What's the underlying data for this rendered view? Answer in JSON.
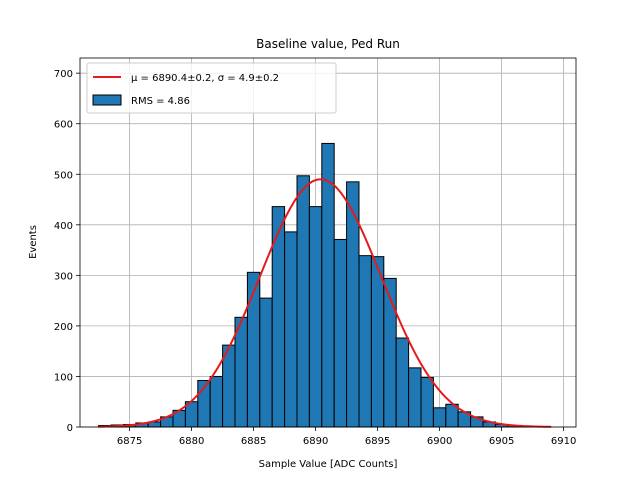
{
  "chart_data": {
    "type": "bar",
    "title": "Baseline value, Ped Run",
    "xlabel": "Sample Value [ADC Counts]",
    "ylabel": "Events",
    "xlim": [
      6871,
      6911
    ],
    "ylim": [
      0,
      730
    ],
    "xticks": [
      6875,
      6880,
      6885,
      6890,
      6895,
      6900,
      6905,
      6910
    ],
    "yticks": [
      0,
      100,
      200,
      300,
      400,
      500,
      600,
      700
    ],
    "grid": true,
    "legend_placement": "top-left",
    "bar_color": "#1f77b4",
    "bar_edge_color": "#000000",
    "fit_color": "#e41a1c",
    "series": [
      {
        "name": "RMS = 4.86",
        "kind": "histogram",
        "bins": [
          {
            "x0": 6872.5,
            "x1": 6873.5,
            "count": 3
          },
          {
            "x0": 6873.5,
            "x1": 6874.5,
            "count": 4
          },
          {
            "x0": 6874.5,
            "x1": 6875.5,
            "count": 5
          },
          {
            "x0": 6875.5,
            "x1": 6876.5,
            "count": 8
          },
          {
            "x0": 6876.5,
            "x1": 6877.5,
            "count": 10
          },
          {
            "x0": 6877.5,
            "x1": 6878.5,
            "count": 20
          },
          {
            "x0": 6878.5,
            "x1": 6879.5,
            "count": 33
          },
          {
            "x0": 6879.5,
            "x1": 6880.5,
            "count": 50
          },
          {
            "x0": 6880.5,
            "x1": 6881.5,
            "count": 92
          },
          {
            "x0": 6881.5,
            "x1": 6882.5,
            "count": 100
          },
          {
            "x0": 6882.5,
            "x1": 6883.5,
            "count": 162
          },
          {
            "x0": 6883.5,
            "x1": 6884.5,
            "count": 217
          },
          {
            "x0": 6884.5,
            "x1": 6885.5,
            "count": 306
          },
          {
            "x0": 6885.5,
            "x1": 6886.5,
            "count": 255
          },
          {
            "x0": 6886.5,
            "x1": 6887.5,
            "count": 436
          },
          {
            "x0": 6887.5,
            "x1": 6888.5,
            "count": 386
          },
          {
            "x0": 6888.5,
            "x1": 6889.5,
            "count": 497
          },
          {
            "x0": 6889.5,
            "x1": 6890.5,
            "count": 436
          },
          {
            "x0": 6890.5,
            "x1": 6891.5,
            "count": 561
          },
          {
            "x0": 6891.5,
            "x1": 6892.5,
            "count": 371
          },
          {
            "x0": 6892.5,
            "x1": 6893.5,
            "count": 485
          },
          {
            "x0": 6893.5,
            "x1": 6894.5,
            "count": 339
          },
          {
            "x0": 6894.5,
            "x1": 6895.5,
            "count": 337
          },
          {
            "x0": 6895.5,
            "x1": 6896.5,
            "count": 294
          },
          {
            "x0": 6896.5,
            "x1": 6897.5,
            "count": 176
          },
          {
            "x0": 6897.5,
            "x1": 6898.5,
            "count": 117
          },
          {
            "x0": 6898.5,
            "x1": 6899.5,
            "count": 98
          },
          {
            "x0": 6899.5,
            "x1": 6900.5,
            "count": 38
          },
          {
            "x0": 6900.5,
            "x1": 6901.5,
            "count": 45
          },
          {
            "x0": 6901.5,
            "x1": 6902.5,
            "count": 30
          },
          {
            "x0": 6902.5,
            "x1": 6903.5,
            "count": 20
          },
          {
            "x0": 6903.5,
            "x1": 6904.5,
            "count": 10
          },
          {
            "x0": 6904.5,
            "x1": 6905.5,
            "count": 5
          },
          {
            "x0": 6905.5,
            "x1": 6906.5,
            "count": 3
          },
          {
            "x0": 6906.5,
            "x1": 6907.5,
            "count": 2
          }
        ]
      },
      {
        "name": "μ = 6890.4±0.2, σ = 4.9±0.2",
        "kind": "gaussian-fit",
        "mu": 6890.4,
        "sigma": 4.9,
        "amplitude": 490,
        "x_range": [
          6872.5,
          6909
        ]
      }
    ]
  }
}
